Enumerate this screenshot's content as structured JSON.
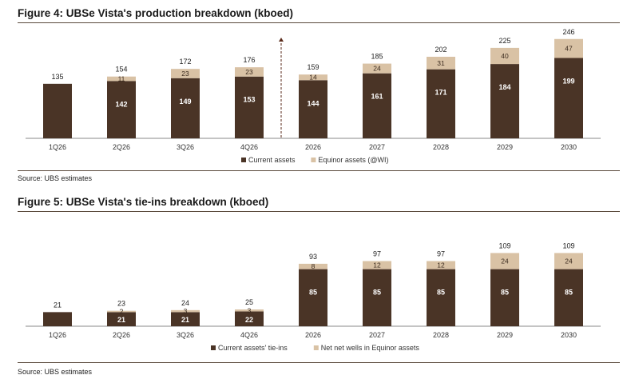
{
  "colors": {
    "current": "#4a3426",
    "equinor": "#d9c2a5",
    "rule": "#5a4a3c",
    "axis": "#8a8a8a"
  },
  "figure4": {
    "title": "Figure 4: UBSe Vista's production breakdown (kboed)",
    "source": "Source: UBS estimates"
  },
  "figure5": {
    "title": "Figure 5: UBSe Vista's tie-ins breakdown (kboed)",
    "source": "Source: UBS estimates"
  },
  "chart_data": [
    {
      "type": "bar",
      "stacked": true,
      "title": "Figure 4: UBSe Vista's production breakdown (kboed)",
      "categories": [
        "1Q26",
        "2Q26",
        "3Q26",
        "4Q26",
        "2026",
        "2027",
        "2028",
        "2029",
        "2030"
      ],
      "series": [
        {
          "name": "Current assets",
          "values": [
            135,
            142,
            149,
            153,
            144,
            161,
            171,
            184,
            199
          ]
        },
        {
          "name": "Equinor assets (@WI)",
          "values": [
            0,
            11,
            23,
            23,
            14,
            24,
            31,
            40,
            47
          ]
        }
      ],
      "totals": [
        135,
        154,
        172,
        176,
        159,
        185,
        202,
        225,
        246
      ],
      "ylim": [
        0,
        260
      ],
      "divider_after_index": 3,
      "legend": "bottom-right"
    },
    {
      "type": "bar",
      "stacked": true,
      "waterfall": true,
      "title": "Figure 5: UBSe Vista's tie-ins breakdown (kboed)",
      "categories": [
        "1Q26",
        "2Q26",
        "3Q26",
        "4Q26",
        "2026",
        "2027",
        "2028",
        "2029",
        "2030"
      ],
      "base": [
        0,
        0,
        0,
        0,
        0,
        0,
        0,
        0,
        0
      ],
      "series": [
        {
          "name": "Current assets' tie-ins",
          "values": [
            21,
            21,
            21,
            22,
            85,
            85,
            85,
            85,
            85
          ]
        },
        {
          "name": "Net net wells in Equinor assets",
          "values": [
            0,
            2,
            3,
            3,
            8,
            12,
            12,
            24,
            24
          ]
        }
      ],
      "totals": [
        21,
        23,
        24,
        25,
        93,
        97,
        97,
        109,
        109
      ],
      "ylim": [
        0,
        120
      ],
      "legend": "bottom-center"
    }
  ]
}
